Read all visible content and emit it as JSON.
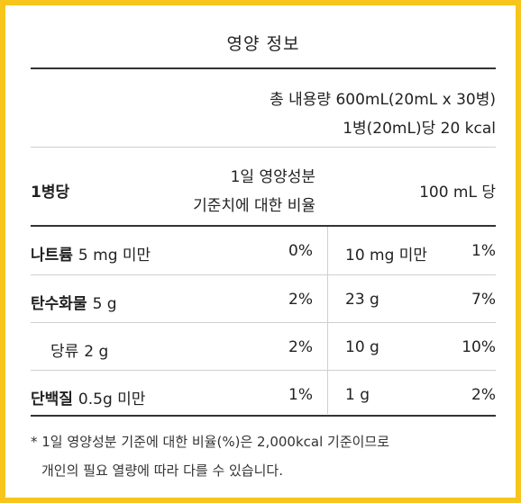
{
  "title": "영양 정보",
  "total_content": "총 내용량 600mL(20mL x 30병)",
  "per_bottle_energy": "1병(20mL)당 20 kcal",
  "header": {
    "per_bottle": "1병당",
    "daily_value_line1": "1일 영양성분",
    "daily_value_line2": "기준치에 대한 비율",
    "per_100ml": "100 mL 당"
  },
  "rows": [
    {
      "name": "나트륨",
      "amount": "5 mg 미만",
      "percent": "0%",
      "amount_100ml": "10 mg 미만",
      "percent_100ml": "1%"
    },
    {
      "name": "탄수화물",
      "amount": "5 g",
      "percent": "2%",
      "amount_100ml": "23 g",
      "percent_100ml": "7%"
    },
    {
      "name": "당류",
      "amount": "2 g",
      "percent": "2%",
      "amount_100ml": "10 g",
      "percent_100ml": "10%"
    },
    {
      "name": "단백질",
      "amount": "0.5g 미만",
      "percent": "1%",
      "amount_100ml": "1 g",
      "percent_100ml": "2%"
    }
  ],
  "footnote_line1": "* 1일 영양성분 기준에 대한 비율(%)은 2,000kcal 기준이므로",
  "footnote_line2": "개인의 필요 열량에 따라 다를 수 있습니다.",
  "colors": {
    "border": "#f7c51c",
    "rule": "#333333",
    "divider": "#cfcfcf"
  }
}
